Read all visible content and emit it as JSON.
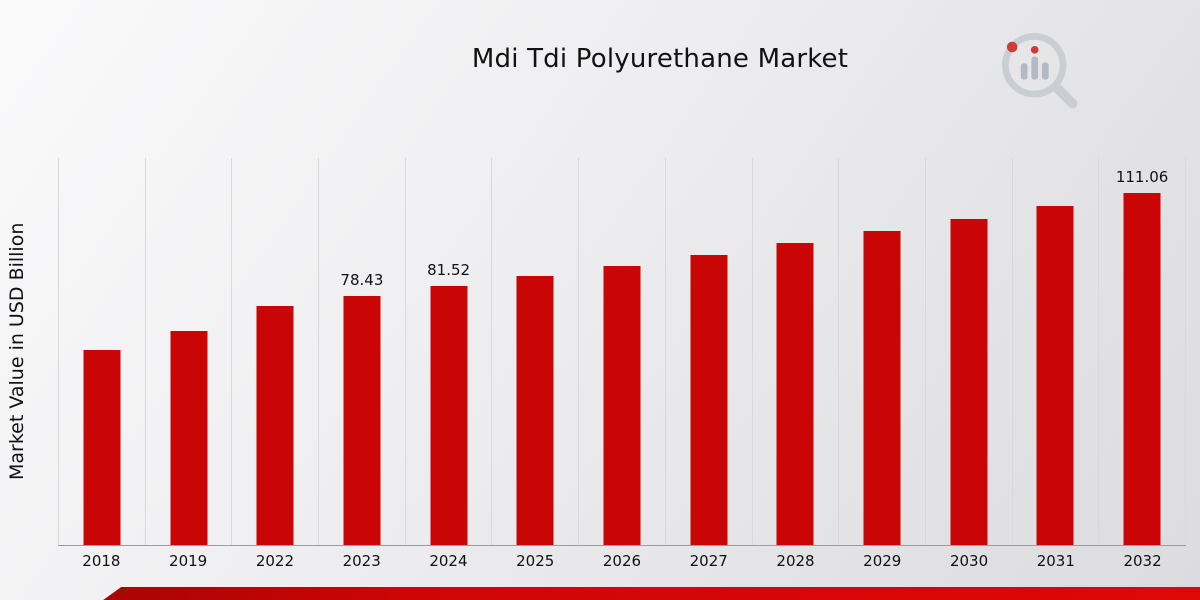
{
  "page": {
    "title": "Mdi Tdi Polyurethane Market",
    "ylabel": "Market Value in USD Billion"
  },
  "chart_data": {
    "type": "bar",
    "title": "Mdi Tdi Polyurethane Market",
    "xlabel": "",
    "ylabel": "Market Value in USD Billion",
    "ylim": [
      0,
      122
    ],
    "grid": "vertical-light",
    "legend": "none",
    "bar_color": "#c90505",
    "categories": [
      "2018",
      "2019",
      "2022",
      "2023",
      "2024",
      "2025",
      "2026",
      "2027",
      "2028",
      "2029",
      "2030",
      "2031",
      "2032"
    ],
    "values": [
      61.45,
      67.42,
      75.46,
      78.43,
      81.52,
      84.73,
      88.07,
      91.54,
      95.14,
      98.89,
      102.78,
      106.83,
      111.06
    ],
    "labels": [
      "",
      "",
      "",
      "78.43",
      "81.52",
      "",
      "",
      "",
      "",
      "",
      "",
      "",
      "111.06"
    ]
  },
  "branding": {
    "logo_name": "market-research-magnifier-logo"
  }
}
